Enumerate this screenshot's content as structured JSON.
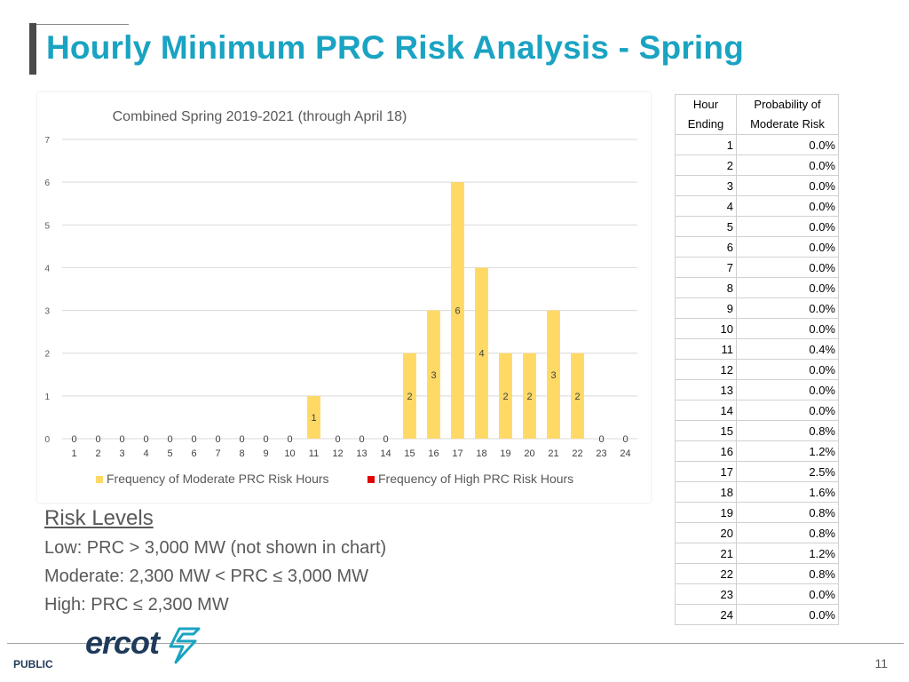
{
  "slide": {
    "title": "Hourly Minimum PRC Risk Analysis - Spring",
    "footer_label": "PUBLIC",
    "page_number": "11",
    "logo_text": "ercot"
  },
  "risk_levels": {
    "heading": "Risk Levels",
    "low": "Low: PRC > 3,000 MW (not shown in chart)",
    "moderate": "Moderate: 2,300 MW < PRC ≤ 3,000 MW",
    "high": "High: PRC ≤ 2,300 MW"
  },
  "table": {
    "header_hour": [
      "Hour",
      "Ending"
    ],
    "header_prob": [
      "Probability of",
      "Moderate Risk"
    ],
    "rows": [
      [
        "1",
        "0.0%"
      ],
      [
        "2",
        "0.0%"
      ],
      [
        "3",
        "0.0%"
      ],
      [
        "4",
        "0.0%"
      ],
      [
        "5",
        "0.0%"
      ],
      [
        "6",
        "0.0%"
      ],
      [
        "7",
        "0.0%"
      ],
      [
        "8",
        "0.0%"
      ],
      [
        "9",
        "0.0%"
      ],
      [
        "10",
        "0.0%"
      ],
      [
        "11",
        "0.4%"
      ],
      [
        "12",
        "0.0%"
      ],
      [
        "13",
        "0.0%"
      ],
      [
        "14",
        "0.0%"
      ],
      [
        "15",
        "0.8%"
      ],
      [
        "16",
        "1.2%"
      ],
      [
        "17",
        "2.5%"
      ],
      [
        "18",
        "1.6%"
      ],
      [
        "19",
        "0.8%"
      ],
      [
        "20",
        "0.8%"
      ],
      [
        "21",
        "1.2%"
      ],
      [
        "22",
        "0.8%"
      ],
      [
        "23",
        "0.0%"
      ],
      [
        "24",
        "0.0%"
      ]
    ]
  },
  "colors": {
    "moderate": "#FFD966",
    "high": "#E00000",
    "title": "#1aa3c2"
  },
  "chart_data": {
    "type": "bar",
    "title": "Combined Spring 2019-2021 (through April 18)",
    "categories": [
      "1",
      "2",
      "3",
      "4",
      "5",
      "6",
      "7",
      "8",
      "9",
      "10",
      "11",
      "12",
      "13",
      "14",
      "15",
      "16",
      "17",
      "18",
      "19",
      "20",
      "21",
      "22",
      "23",
      "24"
    ],
    "yticks": [
      "0",
      "1",
      "2",
      "3",
      "4",
      "5",
      "6",
      "7"
    ],
    "ylim": [
      0,
      7
    ],
    "grid": true,
    "legend_position": "bottom",
    "series": [
      {
        "name": "Frequency of Moderate PRC Risk Hours",
        "color": "#FFD966",
        "values": [
          0,
          0,
          0,
          0,
          0,
          0,
          0,
          0,
          0,
          0,
          1,
          0,
          0,
          0,
          2,
          3,
          6,
          4,
          2,
          2,
          3,
          2,
          0,
          0
        ]
      },
      {
        "name": "Frequency of High PRC Risk Hours",
        "color": "#E00000",
        "values": [
          0,
          0,
          0,
          0,
          0,
          0,
          0,
          0,
          0,
          0,
          0,
          0,
          0,
          0,
          0,
          0,
          0,
          0,
          0,
          0,
          0,
          0,
          0,
          0
        ]
      }
    ]
  }
}
